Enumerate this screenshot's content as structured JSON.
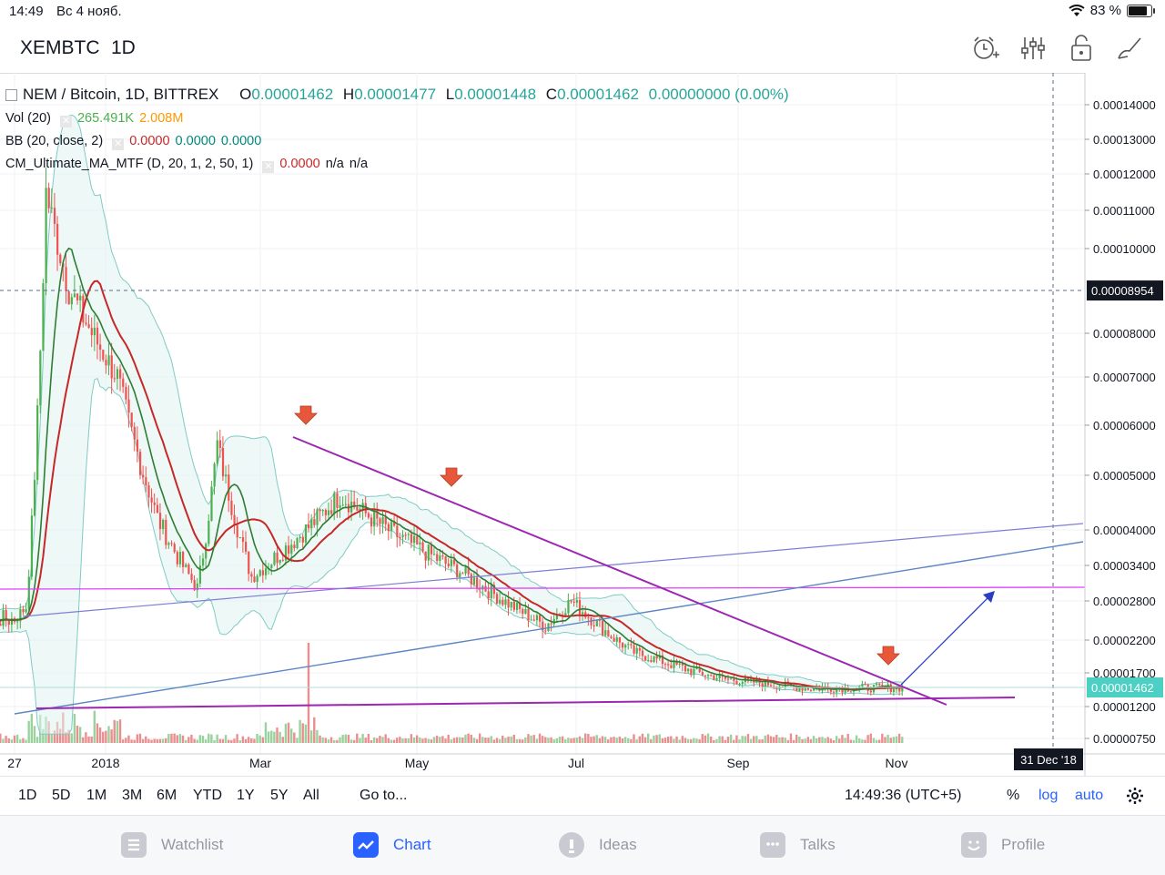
{
  "status": {
    "time": "14:49",
    "date": "Вс 4 нояб.",
    "battery": "83 %",
    "battery_level": 0.83
  },
  "header": {
    "symbol": "XEMBTC",
    "interval": "1D",
    "icons": [
      "alarm-plus-icon",
      "indicators-icon",
      "lock-icon",
      "drawing-brush-icon"
    ]
  },
  "legend": {
    "title": "NEM / Bitcoin, 1D, BITTREX",
    "o_label": "O",
    "o": "0.00001462",
    "h_label": "H",
    "h": "0.00001477",
    "l_label": "L",
    "l": "0.00001448",
    "c_label": "C",
    "c": "0.00001462",
    "change": "0.00000000 (0.00%)",
    "vol_label": "Vol (20)",
    "vol_value": "265.491K",
    "vol_ma": "2.008M",
    "bb_label": "BB (20, close, 2)",
    "bb1": "0.0000",
    "bb2": "0.0000",
    "bb3": "0.0000",
    "cm_label": "CM_Ultimate_MA_MTF (D, 20, 1, 2, 50, 1)",
    "cm1": "0.0000",
    "cm2": "n/a",
    "cm3": "n/a"
  },
  "axis": {
    "price_ticks": [
      "0.00014000",
      "0.00013000",
      "0.00012000",
      "0.00011000",
      "0.00010000",
      "0.00008000",
      "0.00007000",
      "0.00006000",
      "0.00005000",
      "0.00004000",
      "0.00003400",
      "0.00002800",
      "0.00002200",
      "0.00001700",
      "0.00001200",
      "0.00000750"
    ],
    "crosshair_price": "0.00008954",
    "last_price": "0.00001462",
    "time_ticks": [
      "27",
      "2018",
      "Mar",
      "May",
      "Jul",
      "Sep",
      "Nov"
    ],
    "crosshair_date": "31 Dec '18"
  },
  "rangebar": {
    "ranges": [
      "1D",
      "5D",
      "1M",
      "3M",
      "6M",
      "YTD",
      "1Y",
      "5Y",
      "All"
    ],
    "goto": "Go to...",
    "clock": "14:49:36 (UTC+5)",
    "percent": "%",
    "log": "log",
    "auto": "auto"
  },
  "tabs": [
    {
      "label": "Watchlist",
      "icon": "watchlist-icon"
    },
    {
      "label": "Chart",
      "icon": "chart-icon"
    },
    {
      "label": "Ideas",
      "icon": "ideas-icon"
    },
    {
      "label": "Talks",
      "icon": "talks-icon"
    },
    {
      "label": "Profile",
      "icon": "profile-icon"
    }
  ],
  "colors": {
    "up": "#4caf50",
    "down": "#ef5350",
    "ma20": "#2e7d32",
    "ma50": "#c62828",
    "trend": "#9c27b0",
    "magenta": "#e040fb",
    "blue": "#5b86c5",
    "accent": "#2962ff"
  },
  "chart_data": {
    "type": "candlestick",
    "series_name": "NEM / Bitcoin",
    "approx_close_path": [
      {
        "date": "2017-12-27",
        "close": 2.5e-05
      },
      {
        "date": "2017-12-31",
        "close": 2.7e-05
      },
      {
        "date": "2018-01-07",
        "close": 0.000115
      },
      {
        "date": "2018-01-15",
        "close": 9e-05
      },
      {
        "date": "2018-02-01",
        "close": 7e-05
      },
      {
        "date": "2018-02-15",
        "close": 4.2e-05
      },
      {
        "date": "2018-03-01",
        "close": 3e-05
      },
      {
        "date": "2018-03-08",
        "close": 5.6e-05
      },
      {
        "date": "2018-03-20",
        "close": 3.2e-05
      },
      {
        "date": "2018-04-20",
        "close": 4.6e-05
      },
      {
        "date": "2018-05-10",
        "close": 3.9e-05
      },
      {
        "date": "2018-06-01",
        "close": 3.3e-05
      },
      {
        "date": "2018-07-01",
        "close": 2.4e-05
      },
      {
        "date": "2018-07-10",
        "close": 2.8e-05
      },
      {
        "date": "2018-08-01",
        "close": 2e-05
      },
      {
        "date": "2018-09-01",
        "close": 1.6e-05
      },
      {
        "date": "2018-10-01",
        "close": 1.45e-05
      },
      {
        "date": "2018-11-04",
        "close": 1.46e-05
      }
    ]
  }
}
